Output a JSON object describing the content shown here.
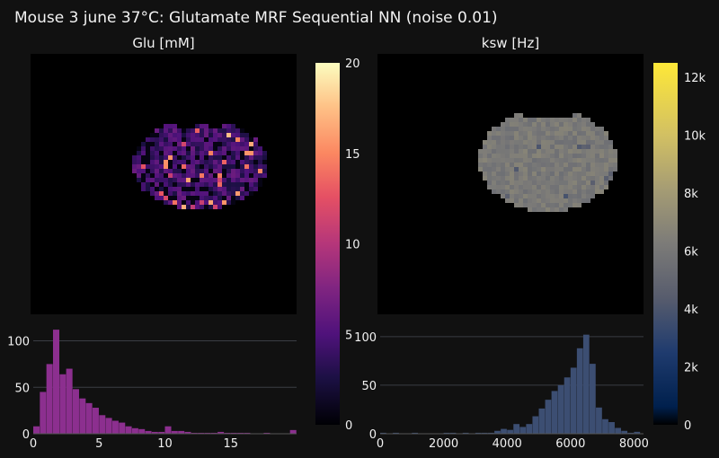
{
  "title": "Mouse 3 june 37°C: Glutamate MRF Sequential NN (noise 0.01)",
  "chart_data": [
    {
      "type": "heatmap",
      "title": "Glu [mM]",
      "colorscale": "magma",
      "colorbar": {
        "range": [
          0,
          20
        ],
        "ticks": [
          0,
          5,
          10,
          15,
          20
        ],
        "tick_labels": [
          "0",
          "5",
          "10",
          "15",
          "20"
        ]
      }
    },
    {
      "type": "heatmap",
      "title": "ksw [Hz]",
      "colorscale": "cividis",
      "colorbar": {
        "range": [
          0,
          12500
        ],
        "ticks": [
          0,
          2000,
          4000,
          6000,
          8000,
          10000,
          12000
        ],
        "tick_labels": [
          "0",
          "2k",
          "4k",
          "6k",
          "8k",
          "10k",
          "12k"
        ]
      }
    },
    {
      "type": "bar",
      "subtype": "histogram",
      "color": "#8c2f8f",
      "xlim": [
        0,
        20
      ],
      "ylim": [
        0,
        115
      ],
      "x_ticks": [
        0,
        5,
        10,
        15
      ],
      "x_tick_labels": [
        "0",
        "5",
        "10",
        "15"
      ],
      "y_ticks": [
        0,
        50,
        100
      ],
      "y_tick_labels": [
        "0",
        "50",
        "100"
      ],
      "grid": true,
      "bin_width": 0.5,
      "bins_start": [
        0,
        0.5,
        1,
        1.5,
        2,
        2.5,
        3,
        3.5,
        4,
        4.5,
        5,
        5.5,
        6,
        6.5,
        7,
        7.5,
        8,
        8.5,
        9,
        9.5,
        10,
        10.5,
        11,
        11.5,
        12,
        12.5,
        13,
        13.5,
        14,
        14.5,
        15,
        15.5,
        16,
        16.5,
        17,
        17.5,
        18,
        18.5,
        19,
        19.5
      ],
      "values": [
        8,
        45,
        75,
        112,
        64,
        70,
        48,
        38,
        33,
        28,
        20,
        17,
        14,
        12,
        8,
        6,
        5,
        3,
        2,
        2,
        8,
        3,
        3,
        2,
        1,
        1,
        1,
        1,
        2,
        1,
        1,
        1,
        1,
        0,
        0,
        1,
        0,
        0,
        0,
        4
      ]
    },
    {
      "type": "bar",
      "subtype": "histogram",
      "color": "#3c4e72",
      "xlim": [
        0,
        8300
      ],
      "ylim": [
        0,
        110
      ],
      "x_ticks": [
        0,
        2000,
        4000,
        6000,
        8000
      ],
      "x_tick_labels": [
        "0",
        "2000",
        "4000",
        "6000",
        "8000"
      ],
      "y_ticks": [
        0,
        50,
        100
      ],
      "y_tick_labels": [
        "0",
        "50",
        "100"
      ],
      "grid": true,
      "bin_width": 200,
      "bins_start": [
        0,
        200,
        400,
        600,
        800,
        1000,
        1200,
        1400,
        1600,
        1800,
        2000,
        2200,
        2400,
        2600,
        2800,
        3000,
        3200,
        3400,
        3600,
        3800,
        4000,
        4200,
        4400,
        4600,
        4800,
        5000,
        5200,
        5400,
        5600,
        5800,
        6000,
        6200,
        6400,
        6600,
        6800,
        7000,
        7200,
        7400,
        7600,
        7800,
        8000
      ],
      "values": [
        1,
        0,
        1,
        0,
        0,
        1,
        0,
        0,
        0,
        0,
        1,
        1,
        0,
        1,
        0,
        1,
        1,
        1,
        3,
        5,
        4,
        10,
        7,
        10,
        18,
        26,
        35,
        44,
        50,
        58,
        68,
        88,
        102,
        72,
        27,
        15,
        12,
        6,
        3,
        1,
        2
      ]
    }
  ]
}
